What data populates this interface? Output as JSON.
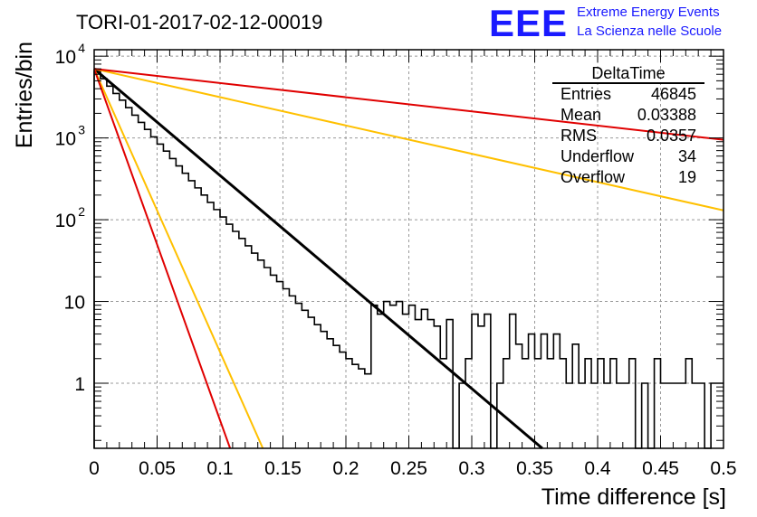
{
  "chart_data": {
    "type": "histogram",
    "title": "TORI-01-2017-02-12-00019",
    "xlabel": "Time difference [s]",
    "ylabel": "Entries/bin",
    "xlim": [
      0,
      0.5
    ],
    "ylim": [
      0.16,
      12000
    ],
    "yscale": "log",
    "grid": true,
    "x_ticks": [
      {
        "value": 0,
        "label": "0"
      },
      {
        "value": 0.05,
        "label": "0.05"
      },
      {
        "value": 0.1,
        "label": "0.1"
      },
      {
        "value": 0.15,
        "label": "0.15"
      },
      {
        "value": 0.2,
        "label": "0.2"
      },
      {
        "value": 0.25,
        "label": "0.25"
      },
      {
        "value": 0.3,
        "label": "0.3"
      },
      {
        "value": 0.35,
        "label": "0.35"
      },
      {
        "value": 0.4,
        "label": "0.4"
      },
      {
        "value": 0.45,
        "label": "0.45"
      },
      {
        "value": 0.5,
        "label": "0.5"
      }
    ],
    "y_ticks": [
      {
        "value": 1,
        "label": "1"
      },
      {
        "value": 10,
        "label": "10"
      },
      {
        "value": 100,
        "label": "10",
        "exp": "2"
      },
      {
        "value": 1000,
        "label": "10",
        "exp": "3"
      },
      {
        "value": 10000,
        "label": "10",
        "exp": "4"
      }
    ],
    "histogram": {
      "name": "DeltaTime",
      "color": "#000000",
      "bin_width": 0.005,
      "counts": [
        6500,
        5300,
        4300,
        3500,
        2900,
        2350,
        1900,
        1550,
        1270,
        1030,
        840,
        690,
        560,
        455,
        370,
        300,
        245,
        200,
        163,
        133,
        108,
        88,
        72,
        59,
        48,
        39,
        32,
        26,
        21,
        17.5,
        14.3,
        11.7,
        9.5,
        7.8,
        6.4,
        5.2,
        4.3,
        3.5,
        2.9,
        2.4,
        2.0,
        1.7,
        1.5,
        1.3,
        9,
        7,
        10,
        9,
        10,
        7,
        9,
        6,
        8,
        6,
        5,
        2,
        6,
        0,
        1,
        2,
        7,
        5,
        7,
        0,
        1,
        2,
        7,
        3,
        2,
        4,
        2,
        4,
        2,
        4,
        2,
        1,
        3,
        1,
        2,
        1,
        2,
        1,
        2,
        1,
        1,
        2,
        0,
        1,
        0,
        2,
        1,
        1,
        1,
        1,
        2,
        1,
        1,
        0,
        1,
        1
      ]
    },
    "fit_lines": [
      {
        "color": "#000000",
        "x": [
          0,
          0.356
        ],
        "y": [
          7000,
          0.16
        ]
      },
      {
        "color": "#ffc000",
        "x": [
          0,
          0.5
        ],
        "y": [
          7000,
          130
        ]
      },
      {
        "color": "#ffc000",
        "x": [
          0,
          0.134
        ],
        "y": [
          7000,
          0.16
        ]
      },
      {
        "color": "#e00000",
        "x": [
          0,
          0.5
        ],
        "y": [
          7000,
          950
        ]
      },
      {
        "color": "#e00000",
        "x": [
          0,
          0.108
        ],
        "y": [
          7000,
          0.16
        ]
      }
    ],
    "stats_box": {
      "title": "DeltaTime",
      "rows": [
        {
          "label": "Entries",
          "value": "46845"
        },
        {
          "label": "Mean",
          "value": "0.03388"
        },
        {
          "label": "RMS",
          "value": "0.0357"
        },
        {
          "label": "Underflow",
          "value": "34"
        },
        {
          "label": "Overflow",
          "value": "19"
        }
      ]
    }
  },
  "branding": {
    "logo": "EEE",
    "line1": "Extreme Energy Events",
    "line2": "La Scienza nelle Scuole",
    "color": "#1a1aff"
  }
}
